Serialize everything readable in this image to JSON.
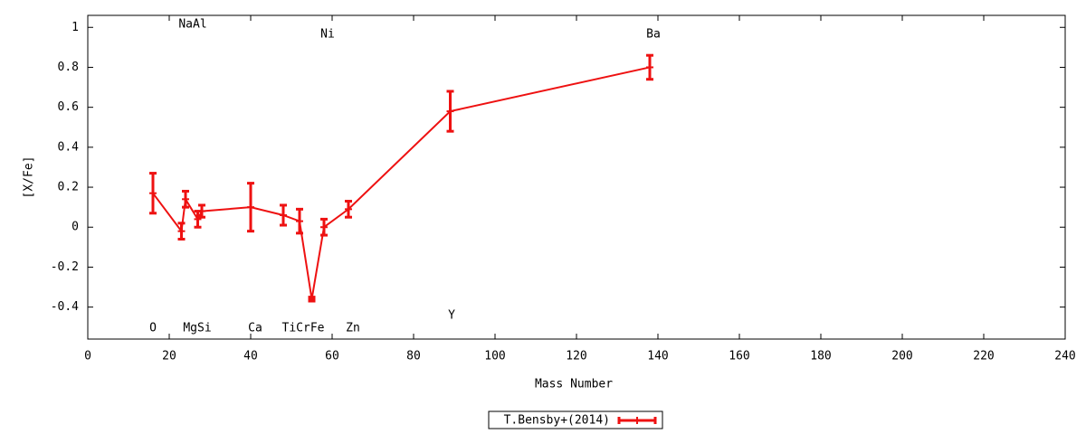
{
  "chart_data": {
    "type": "errorbar-line",
    "x_label": "Mass Number",
    "y_label": "[X/Fe]",
    "xlim": [
      0,
      240
    ],
    "ylim": [
      -0.56,
      1.06
    ],
    "xticks": [
      0,
      20,
      40,
      60,
      80,
      100,
      120,
      140,
      160,
      180,
      200,
      220,
      240
    ],
    "yticks": [
      -0.4,
      -0.2,
      0,
      0.2,
      0.4,
      0.6,
      0.8,
      1
    ],
    "legend": "bottom",
    "annotations": [
      "NaAl",
      "Ni",
      "Ba",
      "O",
      "MgSi",
      "Ca",
      "TiCrFe",
      "Zn",
      "Y"
    ],
    "series": [
      {
        "name": "T.Bensby+(2014)",
        "color": "#ee1111",
        "x": [
          16,
          23,
          24,
          27,
          28,
          40,
          48,
          52,
          55,
          58,
          64,
          89,
          138
        ],
        "values": [
          0.17,
          -0.02,
          0.14,
          0.04,
          0.08,
          0.1,
          0.06,
          0.03,
          -0.36,
          0,
          0.09,
          0.58,
          0.8
        ],
        "errors": [
          0.1,
          0.04,
          0.04,
          0.04,
          0.03,
          0.12,
          0.05,
          0.06,
          0.01,
          0.04,
          0.04,
          0.1,
          0.06
        ]
      }
    ]
  }
}
